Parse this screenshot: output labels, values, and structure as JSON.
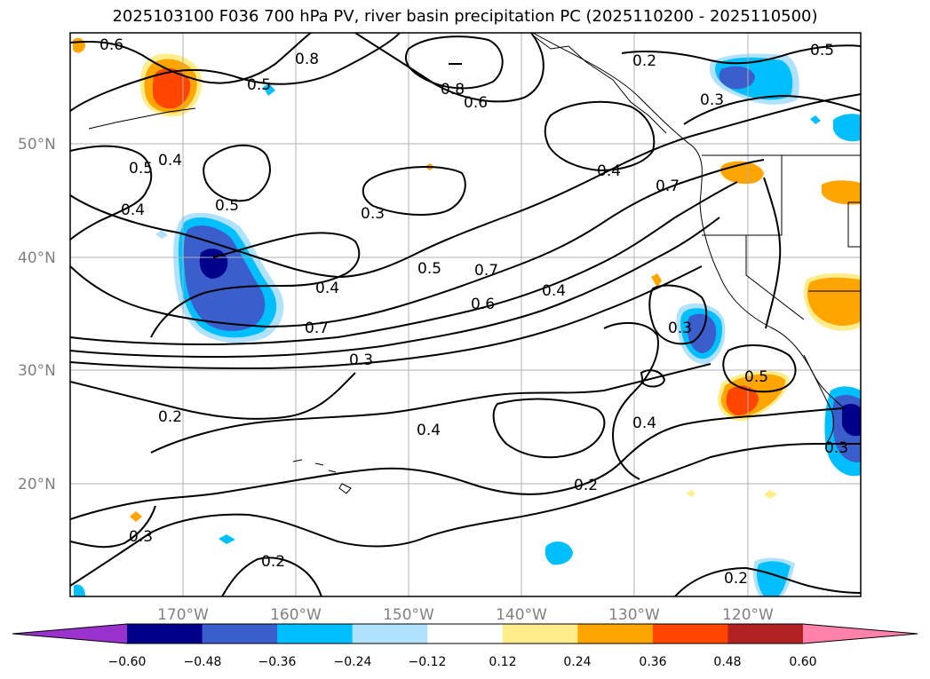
{
  "title": "2025103100 F036 700 hPa PV, river basin precipitation PC (2025110200 - 2025110500)",
  "map": {
    "lat_labels": [
      "50°N",
      "40°N",
      "30°N",
      "20°N"
    ],
    "lon_labels": [
      "170°W",
      "160°W",
      "150°W",
      "140°W",
      "130°W",
      "120°W"
    ],
    "contour_labels": [
      "0.6",
      "0.8",
      "0.5",
      "0.4",
      "0.5",
      "0.4",
      "0.5",
      "0.3",
      "0.8",
      "0.6",
      "0.2",
      "0.5",
      "0.3",
      "0.4",
      "0.7",
      "0.5",
      "0.7",
      "0.6",
      "0.4",
      "0.4",
      "0.7",
      "0.3",
      "0.2",
      "0.4",
      "0.3",
      "0.5",
      "0.4",
      "0.2",
      "0.3",
      "0.3",
      "0.2",
      "0.2"
    ],
    "colors": {
      "neg_060": "#9a32cd",
      "neg_048": "#00008b",
      "neg_036": "#3a5fcd",
      "neg_024": "#00bfff",
      "neg_012": "#b0e2ff",
      "pos_012": "#ffec8b",
      "pos_024": "#ffa500",
      "pos_036": "#ff4500",
      "pos_048": "#b22222",
      "pos_060": "#ff82ab",
      "contour": "#000000",
      "grid": "#b0b0b0"
    }
  },
  "colorbar": {
    "ticks": [
      "−0.60",
      "−0.48",
      "−0.36",
      "−0.24",
      "−0.12",
      "0.12",
      "0.24",
      "0.36",
      "0.48",
      "0.60"
    ],
    "colors": [
      "#9a32cd",
      "#00008b",
      "#3a5fcd",
      "#00bfff",
      "#b0e2ff",
      "#ffffff",
      "#ffec8b",
      "#ffa500",
      "#ff4500",
      "#b22222",
      "#ff82ab"
    ]
  }
}
